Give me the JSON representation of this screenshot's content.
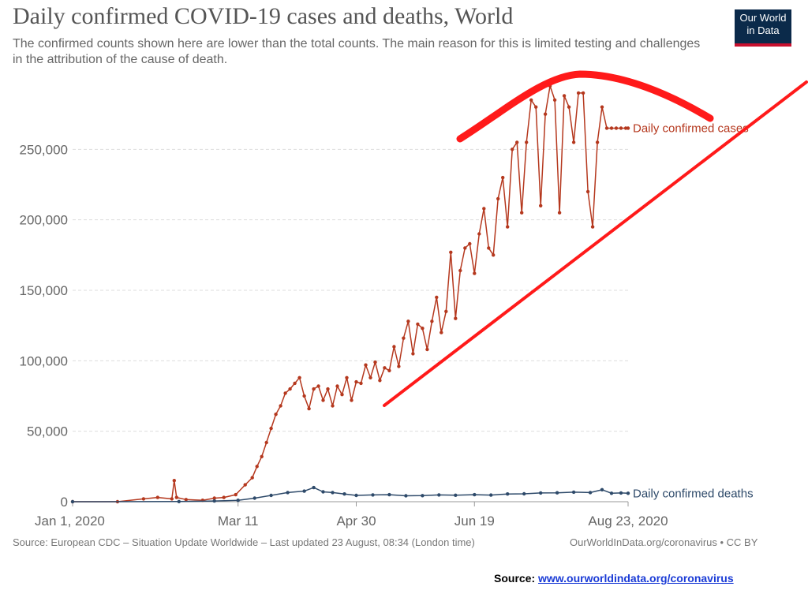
{
  "title": "Daily confirmed COVID-19 cases and deaths, World",
  "subtitle": "The confirmed counts shown here are lower than the total counts. The main reason for this is limited testing and challenges in the attribution of the cause of death.",
  "logo": {
    "line1": "Our World",
    "line2": "in Data"
  },
  "footer": {
    "source": "Source: European CDC – Situation Update Worldwide – Last updated 23 August, 08:34 (London time)",
    "credit": "OurWorldInData.org/coronavirus • CC BY"
  },
  "source_line": {
    "label": "Source:",
    "link": "www.ourworldindata.org/coronavirus"
  },
  "chart_data": {
    "type": "line",
    "x_tick_labels": [
      "Jan 1, 2020",
      "Mar 11",
      "Apr 30",
      "Jun 19",
      "Aug 23, 2020"
    ],
    "y_tick_labels": [
      "0",
      "50,000",
      "100,000",
      "150,000",
      "200,000",
      "250,000"
    ],
    "ylim": [
      0,
      300000
    ],
    "xlim": [
      "2020-01-01",
      "2020-08-23"
    ],
    "grid": "horizontal dashed",
    "series": [
      {
        "name": "Daily confirmed cases",
        "color": "#b5381e",
        "x": [
          "2020-01-01",
          "2020-01-20",
          "2020-01-31",
          "2020-02-06",
          "2020-02-12",
          "2020-02-13",
          "2020-02-14",
          "2020-02-18",
          "2020-02-25",
          "2020-03-01",
          "2020-03-05",
          "2020-03-10",
          "2020-03-14",
          "2020-03-17",
          "2020-03-19",
          "2020-03-21",
          "2020-03-23",
          "2020-03-25",
          "2020-03-27",
          "2020-03-29",
          "2020-03-31",
          "2020-04-02",
          "2020-04-04",
          "2020-04-06",
          "2020-04-08",
          "2020-04-10",
          "2020-04-12",
          "2020-04-14",
          "2020-04-16",
          "2020-04-18",
          "2020-04-20",
          "2020-04-22",
          "2020-04-24",
          "2020-04-26",
          "2020-04-28",
          "2020-04-30",
          "2020-05-02",
          "2020-05-04",
          "2020-05-06",
          "2020-05-08",
          "2020-05-10",
          "2020-05-12",
          "2020-05-14",
          "2020-05-16",
          "2020-05-18",
          "2020-05-20",
          "2020-05-22",
          "2020-05-24",
          "2020-05-26",
          "2020-05-28",
          "2020-05-30",
          "2020-06-01",
          "2020-06-03",
          "2020-06-05",
          "2020-06-07",
          "2020-06-09",
          "2020-06-11",
          "2020-06-13",
          "2020-06-15",
          "2020-06-17",
          "2020-06-19",
          "2020-06-21",
          "2020-06-23",
          "2020-06-25",
          "2020-06-27",
          "2020-06-29",
          "2020-07-01",
          "2020-07-03",
          "2020-07-05",
          "2020-07-07",
          "2020-07-09",
          "2020-07-11",
          "2020-07-13",
          "2020-07-15",
          "2020-07-17",
          "2020-07-19",
          "2020-07-21",
          "2020-07-23",
          "2020-07-25",
          "2020-07-27",
          "2020-07-29",
          "2020-07-31",
          "2020-08-02",
          "2020-08-04",
          "2020-08-06",
          "2020-08-08",
          "2020-08-10",
          "2020-08-12",
          "2020-08-14",
          "2020-08-16",
          "2020-08-18",
          "2020-08-20",
          "2020-08-22",
          "2020-08-23"
        ],
        "values": [
          0,
          0,
          2000,
          3000,
          2000,
          15000,
          3000,
          1500,
          1000,
          2500,
          3000,
          5000,
          12000,
          17000,
          25000,
          32000,
          42000,
          52000,
          62000,
          68000,
          77000,
          80000,
          84000,
          88000,
          75000,
          66000,
          80000,
          82000,
          72000,
          80000,
          68000,
          82000,
          76000,
          88000,
          72000,
          85000,
          84000,
          97000,
          88000,
          99000,
          86000,
          95000,
          93000,
          110000,
          96000,
          116000,
          128000,
          105000,
          126000,
          123000,
          108000,
          128000,
          145000,
          120000,
          135000,
          177000,
          130000,
          164000,
          180000,
          183000,
          162000,
          190000,
          208000,
          180000,
          175000,
          215000,
          230000,
          195000,
          250000,
          255000,
          205000,
          255000,
          285000,
          280000,
          210000,
          275000,
          295000,
          285000,
          205000,
          288000,
          280000,
          255000,
          290000,
          290000,
          220000,
          195000,
          255000,
          280000,
          265000,
          265000,
          265000,
          265000,
          265000,
          265000
        ]
      },
      {
        "name": "Daily confirmed deaths",
        "color": "#2e4a6a",
        "x": [
          "2020-01-01",
          "2020-02-15",
          "2020-03-01",
          "2020-03-11",
          "2020-03-18",
          "2020-03-25",
          "2020-04-01",
          "2020-04-08",
          "2020-04-12",
          "2020-04-16",
          "2020-04-20",
          "2020-04-25",
          "2020-04-30",
          "2020-05-07",
          "2020-05-14",
          "2020-05-21",
          "2020-05-28",
          "2020-06-04",
          "2020-06-11",
          "2020-06-19",
          "2020-06-26",
          "2020-07-03",
          "2020-07-10",
          "2020-07-17",
          "2020-07-24",
          "2020-07-31",
          "2020-08-07",
          "2020-08-12",
          "2020-08-16",
          "2020-08-20",
          "2020-08-23"
        ],
        "values": [
          0,
          100,
          500,
          1000,
          2500,
          4500,
          6500,
          7500,
          10000,
          7000,
          6500,
          5500,
          4500,
          4800,
          5000,
          4200,
          4300,
          4800,
          4600,
          5000,
          4700,
          5500,
          5600,
          6200,
          6300,
          6800,
          6500,
          8500,
          6000,
          6200,
          6000
        ]
      }
    ],
    "annotations": [
      {
        "type": "hand-drawn arc",
        "color": "#ff1a1a"
      },
      {
        "type": "hand-drawn trend line",
        "color": "#ff1a1a"
      }
    ]
  }
}
